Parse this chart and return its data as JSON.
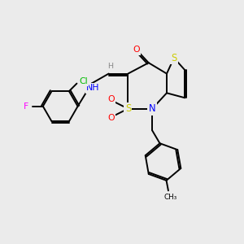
{
  "background_color": "#ebebeb",
  "atom_colors": {
    "C": "#000000",
    "H": "#888888",
    "N": "#0000ff",
    "O": "#ff0000",
    "S": "#cccc00",
    "Cl": "#00bb00",
    "F": "#ff00ff"
  },
  "bond_color": "#000000",
  "bond_width": 1.4,
  "fig_width": 3.0,
  "fig_height": 3.0,
  "dpi": 100
}
